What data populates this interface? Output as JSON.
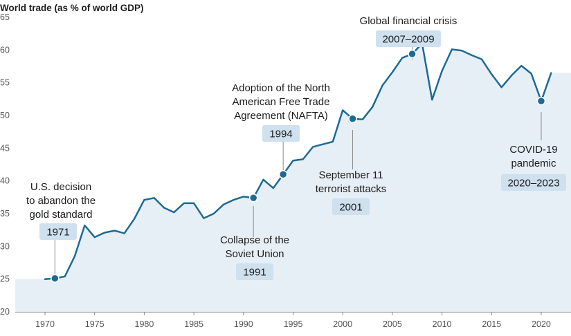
{
  "chart_data": {
    "type": "area",
    "title": "World trade (as % of world GDP)",
    "xlabel": "",
    "ylabel": "",
    "xlim": [
      1967,
      2023
    ],
    "ylim": [
      20,
      65
    ],
    "x_ticks": [
      "1970",
      "1975",
      "1980",
      "1985",
      "1990",
      "1995",
      "2000",
      "2005",
      "2010",
      "2015",
      "2020"
    ],
    "y_ticks": [
      "20",
      "25",
      "30",
      "35",
      "40",
      "45",
      "50",
      "55",
      "60",
      "65"
    ],
    "grid": false,
    "colors": {
      "line": "#1c6a95",
      "fill": "#e6eef6",
      "badge": "#cfe0ee",
      "text": "#1c1c1c",
      "axis": "#555555"
    },
    "series": [
      {
        "x": [
          1970,
          1971,
          1972,
          1973,
          1974,
          1975,
          1976,
          1977,
          1978,
          1979,
          1980,
          1981,
          1982,
          1983,
          1984,
          1985,
          1986,
          1987,
          1988,
          1989,
          1990,
          1991,
          1992,
          1993,
          1994,
          1995,
          1996,
          1997,
          1998,
          1999,
          2000,
          2001,
          2002,
          2003,
          2004,
          2005,
          2006,
          2007,
          2008,
          2009,
          2010,
          2011,
          2012,
          2013,
          2014,
          2015,
          2016,
          2017,
          2018,
          2019,
          2020,
          2021
        ],
        "values": [
          25.0,
          25.1,
          25.4,
          28.5,
          33.2,
          31.4,
          32.1,
          32.4,
          32.0,
          34.2,
          37.1,
          37.4,
          35.9,
          35.2,
          36.6,
          36.6,
          34.3,
          35.0,
          36.4,
          37.1,
          37.6,
          37.4,
          40.2,
          38.9,
          41.0,
          43.1,
          43.3,
          45.2,
          45.6,
          46.0,
          50.8,
          49.5,
          49.4,
          51.3,
          54.6,
          56.6,
          58.8,
          59.4,
          61.0,
          52.4,
          56.8,
          60.1,
          59.9,
          59.2,
          58.6,
          56.3,
          54.3,
          56.1,
          57.6,
          56.4,
          52.2,
          56.5
        ]
      }
    ],
    "annotations": [
      {
        "label_lines": [
          "U.S. decision",
          "to abandon the",
          "gold standard"
        ],
        "badge": "1971",
        "x": 1971,
        "y": 25.1
      },
      {
        "label_lines": [
          "Collapse of the",
          "Soviet Union"
        ],
        "badge": "1991",
        "x": 1991,
        "y": 37.4
      },
      {
        "label_lines": [
          "Adoption of the North",
          "American Free Trade",
          "Agreement (NAFTA)"
        ],
        "badge": "1994",
        "x": 1994,
        "y": 41.0
      },
      {
        "label_lines": [
          "September 11",
          "terrorist attacks"
        ],
        "badge": "2001",
        "x": 2001,
        "y": 49.5
      },
      {
        "label_lines": [
          "Global financial crisis"
        ],
        "badge": "2007–2009",
        "x": 2007,
        "y": 59.4
      },
      {
        "label_lines": [
          "COVID-19",
          "pandemic"
        ],
        "badge": "2020–2023",
        "x": 2020,
        "y": 52.2
      }
    ]
  }
}
